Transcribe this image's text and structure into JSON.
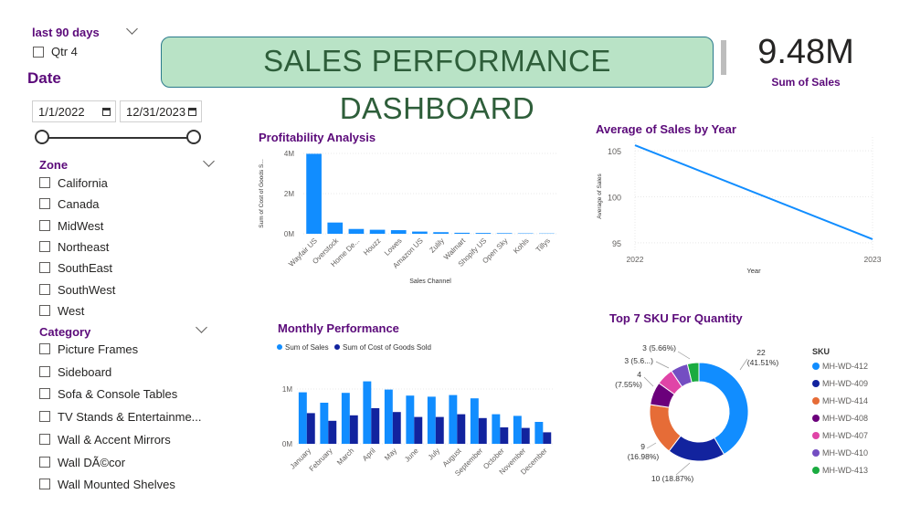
{
  "filters": {
    "period": {
      "label": "last 90 days",
      "option": "Qtr 4"
    },
    "date": {
      "title": "Date",
      "start": "1/1/2022",
      "end": "12/31/2023"
    },
    "zone": {
      "title": "Zone",
      "items": [
        "California",
        "Canada",
        "MidWest",
        "Northeast",
        "SouthEast",
        "SouthWest",
        "West"
      ]
    },
    "category": {
      "title": "Category",
      "items": [
        "Picture Frames",
        "Sideboard",
        "Sofa & Console Tables",
        "TV Stands & Entertainme...",
        "Wall & Accent Mirrors",
        "Wall DÃ©cor",
        "Wall Mounted Shelves"
      ]
    }
  },
  "header": {
    "title": "SALES PERFORMANCE DASHBOARD"
  },
  "kpi": {
    "value": "9.48M",
    "label": "Sum of Sales"
  },
  "colors": {
    "accent_purple": "#5b0a7a",
    "bar_blue": "#118dff",
    "bar_navy": "#12239e",
    "banner_green": "#b9e3c6"
  },
  "chart_data": [
    {
      "type": "bar",
      "title": "Profitability Analysis",
      "xlabel": "Sales Channel",
      "ylabel": "Sum of Cost of Goods S...",
      "ylim": [
        0,
        4000000
      ],
      "yticks": [
        "0M",
        "2M",
        "4M"
      ],
      "categories": [
        "Wayfair US",
        "Overstock",
        "Home De...",
        "Houzz",
        "Lowes",
        "Amazon US",
        "Zulily",
        "Walmart",
        "Shopify US",
        "Open Sky",
        "Kohls",
        "Tillys"
      ],
      "values": [
        3980000,
        560000,
        240000,
        200000,
        180000,
        110000,
        80000,
        50000,
        40000,
        30000,
        20000,
        15000
      ]
    },
    {
      "type": "line",
      "title": "Average of Sales by Year",
      "xlabel": "Year",
      "ylabel": "Average of Sales",
      "x": [
        "2022",
        "2023"
      ],
      "values": [
        105.6,
        95.4
      ],
      "ylim": [
        94,
        106.5
      ],
      "yticks": [
        "95",
        "100",
        "105"
      ]
    },
    {
      "type": "bar",
      "title": "Monthly Performance",
      "legend": [
        "Sum of Sales",
        "Sum of Cost of Goods Sold"
      ],
      "categories": [
        "January",
        "February",
        "March",
        "April",
        "May",
        "June",
        "July",
        "August",
        "September",
        "October",
        "November",
        "December"
      ],
      "series": [
        {
          "name": "Sum of Sales",
          "values": [
            940000,
            750000,
            930000,
            1140000,
            990000,
            880000,
            860000,
            890000,
            830000,
            540000,
            510000,
            400000
          ]
        },
        {
          "name": "Sum of Cost of Goods Sold",
          "values": [
            560000,
            420000,
            520000,
            650000,
            580000,
            490000,
            490000,
            540000,
            470000,
            300000,
            290000,
            210000
          ]
        }
      ],
      "ylim": [
        0,
        1300000
      ],
      "yticks": [
        "0M",
        "1M"
      ]
    },
    {
      "type": "pie",
      "title": "Top 7 SKU For Quantity",
      "legend_title": "SKU",
      "slices": [
        {
          "name": "MH-WD-412",
          "value": 22,
          "label": "22",
          "pct": "(41.51%)",
          "color": "#118dff"
        },
        {
          "name": "MH-WD-409",
          "value": 10,
          "label": "10 (18.87%)",
          "pct": "",
          "color": "#12239e"
        },
        {
          "name": "MH-WD-414",
          "value": 9,
          "label": "9",
          "pct": "(16.98%)",
          "color": "#e66c37"
        },
        {
          "name": "MH-WD-408",
          "value": 4,
          "label": "4",
          "pct": "(7.55%)",
          "color": "#6b007b"
        },
        {
          "name": "MH-WD-407",
          "value": 3,
          "label": "3 (5.6...)",
          "pct": "",
          "color": "#e044a7"
        },
        {
          "name": "MH-WD-410",
          "value": 3,
          "label": "3 (5.66%)",
          "pct": "",
          "color": "#744ec2"
        },
        {
          "name": "MH-WD-413",
          "value": 2,
          "label": "",
          "pct": "",
          "color": "#1aab40"
        }
      ]
    }
  ]
}
